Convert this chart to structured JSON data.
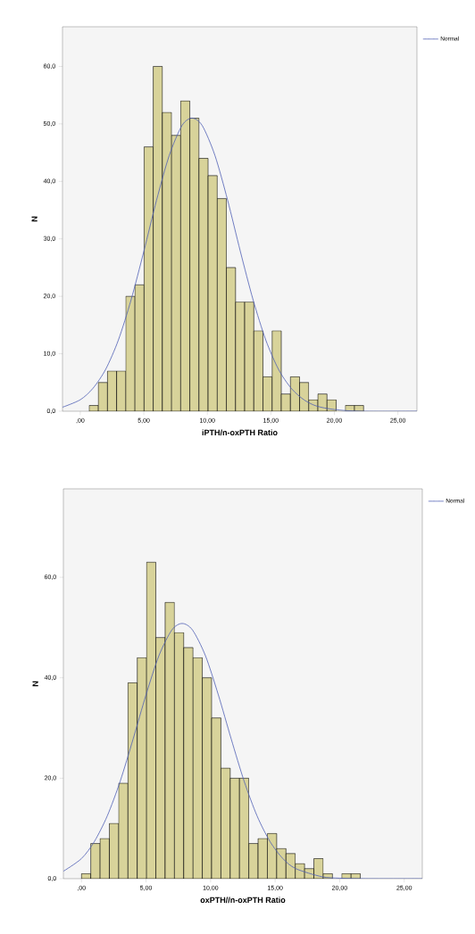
{
  "chart_data": [
    {
      "type": "histogram",
      "xlabel": "iPTH/n-oxPTH Ratio",
      "ylabel": "N",
      "legend": "top right",
      "xlim": [
        -1.4,
        26.5
      ],
      "ylim": [
        0,
        66.9
      ],
      "xticks": [
        {
          "value": 0,
          "label": ",00"
        },
        {
          "value": 5,
          "label": "5,00"
        },
        {
          "value": 10,
          "label": "10,00"
        },
        {
          "value": 15,
          "label": "15,00"
        },
        {
          "value": 20,
          "label": "20,00"
        },
        {
          "value": 25,
          "label": "25,00"
        }
      ],
      "yticks": [
        {
          "value": 0,
          "label": "0,0"
        },
        {
          "value": 10,
          "label": "10,0"
        },
        {
          "value": 20,
          "label": "20,0"
        },
        {
          "value": 30,
          "label": "30,0"
        },
        {
          "value": 40,
          "label": "40,0"
        },
        {
          "value": 50,
          "label": "50,0"
        },
        {
          "value": 60,
          "label": "60,0"
        }
      ],
      "bins": [
        0.7,
        1.42,
        2.14,
        2.86,
        3.58,
        4.3,
        5.02,
        5.74,
        6.46,
        7.18,
        7.9,
        8.62,
        9.34,
        10.06,
        10.78,
        11.5,
        12.22,
        12.94,
        13.66,
        14.38,
        15.1,
        15.82,
        16.54,
        17.26,
        17.98,
        18.7,
        19.42,
        20.14,
        20.86,
        21.58,
        22.3
      ],
      "series": [
        {
          "color": "#d8d39a",
          "values": [
            1,
            5,
            7,
            7,
            20,
            22,
            46,
            60,
            52,
            48,
            54,
            51,
            44,
            41,
            37,
            25,
            19,
            19,
            14,
            6,
            14,
            3,
            6,
            5,
            2,
            3,
            2,
            0,
            1,
            1
          ]
        },
        {
          "type": "line",
          "name": "Normal",
          "color": "#4f5fb5",
          "x": [
            -1.4,
            0,
            1,
            2,
            3,
            4,
            5,
            6,
            7,
            8,
            8.8,
            9.6,
            10.6,
            11.6,
            12.6,
            13.6,
            14.6,
            15.6,
            16.6,
            17.6,
            18.6,
            20,
            22,
            26.5
          ],
          "values": [
            0.7,
            2.0,
            4.0,
            7.3,
            12.4,
            19.4,
            27.8,
            36.7,
            44.5,
            49.7,
            51,
            49.7,
            44.5,
            36.7,
            27.8,
            19.4,
            12.4,
            7.3,
            4.0,
            2.0,
            0.9,
            0.3,
            0,
            0
          ]
        }
      ]
    },
    {
      "type": "histogram",
      "xlabel": "oxPTH//n-oxPTH Ratio",
      "ylabel": "N",
      "legend": "top right",
      "xlim": [
        -1.4,
        26.4
      ],
      "ylim": [
        0,
        77.6
      ],
      "xticks": [
        {
          "value": 0,
          "label": ",00"
        },
        {
          "value": 5,
          "label": "5,00"
        },
        {
          "value": 10,
          "label": "10,00"
        },
        {
          "value": 15,
          "label": "15,00"
        },
        {
          "value": 20,
          "label": "20,00"
        },
        {
          "value": 25,
          "label": "25,00"
        }
      ],
      "yticks": [
        {
          "value": 0,
          "label": "0,0"
        },
        {
          "value": 20,
          "label": "20,0"
        },
        {
          "value": 40,
          "label": "40,0"
        },
        {
          "value": 60,
          "label": "60,0"
        }
      ],
      "bins": [
        0,
        0.72,
        1.44,
        2.16,
        2.88,
        3.6,
        4.32,
        5.04,
        5.76,
        6.48,
        7.2,
        7.92,
        8.64,
        9.36,
        10.08,
        10.8,
        11.52,
        12.24,
        12.96,
        13.68,
        14.4,
        15.12,
        15.84,
        16.56,
        17.28,
        18.0,
        18.72,
        19.44,
        20.16,
        20.88,
        21.6
      ],
      "series": [
        {
          "color": "#d8d39a",
          "values": [
            1,
            7,
            8,
            11,
            19,
            39,
            44,
            63,
            48,
            55,
            49,
            46,
            44,
            40,
            32,
            22,
            20,
            20,
            7,
            8,
            9,
            6,
            5,
            3,
            2,
            4,
            1,
            0,
            1,
            1
          ]
        },
        {
          "type": "line",
          "name": "Normal",
          "color": "#4f5fb5",
          "x": [
            -1.39,
            0,
            1,
            2,
            3,
            4,
            5,
            6,
            7,
            7.8,
            8.6,
            9.6,
            10.6,
            11.6,
            12.6,
            13.6,
            14.6,
            15.6,
            16.6,
            18.6,
            20,
            22,
            26.4
          ],
          "values": [
            1.5,
            4.0,
            7.4,
            12.5,
            19.4,
            27.8,
            36.6,
            44.4,
            49.5,
            50.8,
            49.5,
            44.4,
            36.6,
            27.8,
            19.4,
            12.5,
            7.4,
            4.0,
            2.0,
            0.4,
            0.1,
            0,
            0
          ]
        }
      ]
    }
  ]
}
